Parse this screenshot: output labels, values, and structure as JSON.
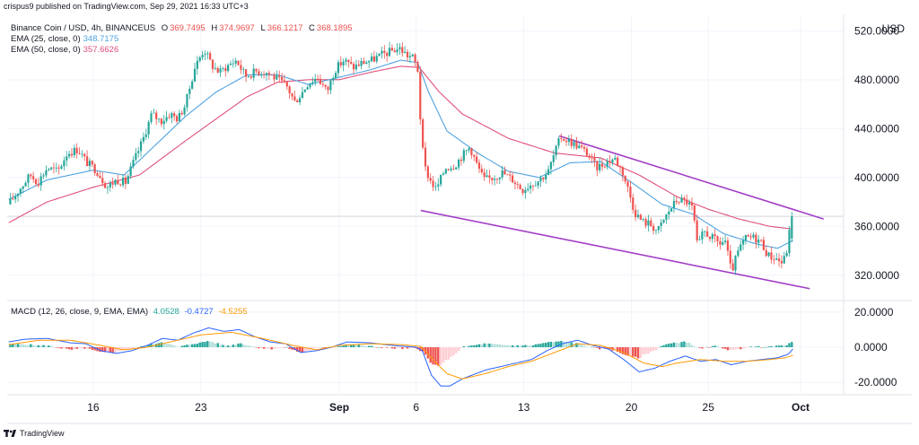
{
  "header": {
    "published": "crispus9 published on TradingView.com, Sep 29, 2021 16:33 UTC+3"
  },
  "legend": {
    "symbol": "Binance Coin / USD, 4h, BINANCEUS",
    "ohlc": [
      {
        "k": "O",
        "v": "369.7495"
      },
      {
        "k": "H",
        "v": "374.9697"
      },
      {
        "k": "L",
        "v": "366.1217"
      },
      {
        "k": "C",
        "v": "368.1895"
      }
    ],
    "ema25_label": "EMA (25, close, 0)",
    "ema25_value": "348.7175",
    "ema50_label": "EMA (50, close, 0)",
    "ema50_value": "357.6626",
    "macd_label": "MACD (12, 26, close, 9, EMA, EMA)",
    "macd_hist": "4.0528",
    "macd_line": "-0.4727",
    "macd_signal": "-4.5255"
  },
  "footer": {
    "brand": "TradingView"
  },
  "colors": {
    "up": "#26a69a",
    "down": "#ef5350",
    "ema25": "#4fa3e0",
    "ema50": "#e0507a",
    "trend": "#a23ec7",
    "macd": "#2962ff",
    "signal": "#ff9800"
  },
  "chart_data": [
    {
      "type": "candlestick",
      "currency": "USD",
      "ylim": [
        300,
        532
      ],
      "yticks": [
        "520.0000",
        "480.0000",
        "440.0000",
        "400.0000",
        "360.0000",
        "320.0000"
      ],
      "ytick_values": [
        520,
        480,
        440,
        400,
        360,
        320
      ],
      "x_labels": [
        {
          "label": "16",
          "day": 16
        },
        {
          "label": "23",
          "day": 23
        },
        {
          "label": "Sep",
          "day": 32
        },
        {
          "label": "6",
          "day": 37
        },
        {
          "label": "13",
          "day": 44
        },
        {
          "label": "20",
          "day": 51
        },
        {
          "label": "25",
          "day": 56
        },
        {
          "label": "Oct",
          "day": 62
        }
      ],
      "x_range_days": [
        10.4,
        64.8
      ],
      "price_line": 368.19,
      "close_anchors": [
        [
          10.6,
          380
        ],
        [
          11.3,
          392
        ],
        [
          11.9,
          402
        ],
        [
          12.4,
          396
        ],
        [
          13.0,
          408
        ],
        [
          13.7,
          405
        ],
        [
          14.3,
          420
        ],
        [
          15.0,
          423
        ],
        [
          15.6,
          412
        ],
        [
          16.2,
          406
        ],
        [
          16.9,
          392
        ],
        [
          17.5,
          398
        ],
        [
          18.1,
          396
        ],
        [
          18.6,
          412
        ],
        [
          19.2,
          430
        ],
        [
          19.8,
          452
        ],
        [
          20.4,
          446
        ],
        [
          21.0,
          452
        ],
        [
          21.5,
          448
        ],
        [
          22.0,
          460
        ],
        [
          22.6,
          490
        ],
        [
          23.2,
          505
        ],
        [
          23.7,
          492
        ],
        [
          24.2,
          486
        ],
        [
          24.8,
          492
        ],
        [
          25.3,
          496
        ],
        [
          25.9,
          483
        ],
        [
          26.6,
          487
        ],
        [
          27.3,
          486
        ],
        [
          28.0,
          480
        ],
        [
          28.6,
          474
        ],
        [
          29.1,
          462
        ],
        [
          29.5,
          468
        ],
        [
          30.0,
          478
        ],
        [
          30.6,
          482
        ],
        [
          31.2,
          470
        ],
        [
          31.7,
          488
        ],
        [
          32.3,
          496
        ],
        [
          32.9,
          490
        ],
        [
          33.5,
          494
        ],
        [
          34.1,
          496
        ],
        [
          34.7,
          500
        ],
        [
          35.3,
          503
        ],
        [
          35.9,
          506
        ],
        [
          36.4,
          500
        ],
        [
          36.8,
          498
        ],
        [
          37.1,
          488
        ],
        [
          37.25,
          452
        ],
        [
          37.5,
          410
        ],
        [
          37.9,
          398
        ],
        [
          38.3,
          390
        ],
        [
          38.9,
          408
        ],
        [
          39.5,
          410
        ],
        [
          40.0,
          418
        ],
        [
          40.5,
          425
        ],
        [
          40.9,
          412
        ],
        [
          41.4,
          398
        ],
        [
          42.0,
          400
        ],
        [
          42.6,
          404
        ],
        [
          43.3,
          398
        ],
        [
          43.9,
          390
        ],
        [
          44.5,
          395
        ],
        [
          45.0,
          398
        ],
        [
          45.6,
          405
        ],
        [
          46.0,
          420
        ],
        [
          46.4,
          433
        ],
        [
          46.9,
          430
        ],
        [
          47.5,
          426
        ],
        [
          48.1,
          420
        ],
        [
          48.7,
          408
        ],
        [
          49.3,
          412
        ],
        [
          49.9,
          416
        ],
        [
          50.4,
          405
        ],
        [
          50.8,
          390
        ],
        [
          51.2,
          372
        ],
        [
          51.7,
          364
        ],
        [
          52.2,
          362
        ],
        [
          52.7,
          356
        ],
        [
          53.1,
          365
        ],
        [
          53.5,
          374
        ],
        [
          54.0,
          382
        ],
        [
          54.6,
          380
        ],
        [
          55.0,
          374
        ],
        [
          55.3,
          342
        ],
        [
          55.7,
          356
        ],
        [
          56.2,
          351
        ],
        [
          56.7,
          346
        ],
        [
          57.1,
          348
        ],
        [
          57.5,
          322
        ],
        [
          57.9,
          338
        ],
        [
          58.4,
          350
        ],
        [
          58.9,
          351
        ],
        [
          59.4,
          348
        ],
        [
          59.9,
          336
        ],
        [
          60.4,
          334
        ],
        [
          60.8,
          330
        ],
        [
          61.05,
          336
        ],
        [
          61.35,
          362
        ],
        [
          61.55,
          369
        ]
      ],
      "ema25_anchors": [
        [
          10.5,
          382
        ],
        [
          13.0,
          398
        ],
        [
          16.0,
          406
        ],
        [
          18.0,
          402
        ],
        [
          20.0,
          426
        ],
        [
          22.0,
          450
        ],
        [
          24.0,
          470
        ],
        [
          26.0,
          484
        ],
        [
          28.0,
          484
        ],
        [
          30.0,
          476
        ],
        [
          32.0,
          482
        ],
        [
          34.0,
          488
        ],
        [
          36.0,
          496
        ],
        [
          37.1,
          494
        ],
        [
          37.8,
          470
        ],
        [
          39.0,
          438
        ],
        [
          41.0,
          420
        ],
        [
          43.0,
          405
        ],
        [
          45.0,
          400
        ],
        [
          47.0,
          412
        ],
        [
          49.0,
          413
        ],
        [
          51.0,
          396
        ],
        [
          53.0,
          378
        ],
        [
          55.0,
          370
        ],
        [
          57.0,
          354
        ],
        [
          59.0,
          346
        ],
        [
          60.5,
          342
        ],
        [
          61.55,
          348.7
        ]
      ],
      "ema50_anchors": [
        [
          10.5,
          363
        ],
        [
          13.0,
          380
        ],
        [
          16.0,
          392
        ],
        [
          19.0,
          402
        ],
        [
          22.0,
          430
        ],
        [
          24.0,
          448
        ],
        [
          26.0,
          466
        ],
        [
          28.0,
          478
        ],
        [
          30.0,
          480
        ],
        [
          32.0,
          480
        ],
        [
          34.0,
          486
        ],
        [
          36.0,
          491
        ],
        [
          37.2,
          490
        ],
        [
          38.5,
          470
        ],
        [
          40.0,
          452
        ],
        [
          43.0,
          432
        ],
        [
          46.0,
          420
        ],
        [
          49.0,
          416
        ],
        [
          51.5,
          402
        ],
        [
          54.0,
          384
        ],
        [
          56.0,
          374
        ],
        [
          58.0,
          366
        ],
        [
          60.0,
          360
        ],
        [
          61.55,
          357.7
        ]
      ],
      "trend_lines": [
        {
          "from": [
            46.3,
            434
          ],
          "to": [
            63.5,
            366
          ]
        },
        {
          "from": [
            37.3,
            373
          ],
          "to": [
            62.6,
            309
          ]
        }
      ]
    },
    {
      "type": "macd",
      "ylim": [
        -26,
        26
      ],
      "yticks": [
        "20.0000",
        "0.0000",
        "-20.0000"
      ],
      "ytick_values": [
        20,
        0,
        -20
      ],
      "macd_anchors": [
        [
          10.5,
          3
        ],
        [
          11.5,
          4.5
        ],
        [
          13.0,
          5
        ],
        [
          14.5,
          2.5
        ],
        [
          15.5,
          2
        ],
        [
          16.5,
          -2
        ],
        [
          17.5,
          -3.5
        ],
        [
          18.5,
          -2
        ],
        [
          19.5,
          1
        ],
        [
          20.5,
          5
        ],
        [
          21.5,
          4
        ],
        [
          22.5,
          8
        ],
        [
          23.5,
          11
        ],
        [
          24.5,
          9
        ],
        [
          25.5,
          10
        ],
        [
          26.5,
          6
        ],
        [
          27.5,
          3
        ],
        [
          28.5,
          2
        ],
        [
          29.5,
          -3
        ],
        [
          30.5,
          -2
        ],
        [
          31.5,
          0
        ],
        [
          32.5,
          3
        ],
        [
          34.0,
          2.5
        ],
        [
          35.5,
          1
        ],
        [
          37.0,
          0
        ],
        [
          37.4,
          -2
        ],
        [
          38.0,
          -16
        ],
        [
          38.6,
          -22
        ],
        [
          39.2,
          -22
        ],
        [
          40.0,
          -18
        ],
        [
          41.5,
          -13
        ],
        [
          43.0,
          -10
        ],
        [
          44.5,
          -7
        ],
        [
          45.5,
          -2
        ],
        [
          46.5,
          2
        ],
        [
          47.5,
          4
        ],
        [
          48.5,
          1
        ],
        [
          49.5,
          -1
        ],
        [
          50.5,
          -7
        ],
        [
          51.5,
          -14
        ],
        [
          52.5,
          -12
        ],
        [
          53.5,
          -8
        ],
        [
          54.5,
          -5
        ],
        [
          55.5,
          -8
        ],
        [
          56.5,
          -7
        ],
        [
          57.5,
          -10
        ],
        [
          58.5,
          -8
        ],
        [
          59.5,
          -7
        ],
        [
          60.5,
          -6
        ],
        [
          61.2,
          -4
        ],
        [
          61.55,
          -0.47
        ]
      ],
      "signal_anchors": [
        [
          10.5,
          1.5
        ],
        [
          12.5,
          4
        ],
        [
          14.5,
          4
        ],
        [
          16.5,
          1
        ],
        [
          18.0,
          -1.5
        ],
        [
          19.5,
          0
        ],
        [
          21.0,
          3
        ],
        [
          23.0,
          7
        ],
        [
          25.0,
          8.5
        ],
        [
          27.0,
          5
        ],
        [
          29.0,
          1
        ],
        [
          30.5,
          -1.5
        ],
        [
          32.0,
          1
        ],
        [
          34.0,
          2
        ],
        [
          36.0,
          1.5
        ],
        [
          37.3,
          0.5
        ],
        [
          38.2,
          -8
        ],
        [
          39.0,
          -15
        ],
        [
          40.0,
          -18
        ],
        [
          41.5,
          -15
        ],
        [
          43.0,
          -11
        ],
        [
          44.5,
          -8
        ],
        [
          46.0,
          -3
        ],
        [
          47.5,
          2
        ],
        [
          49.0,
          1
        ],
        [
          50.5,
          -3
        ],
        [
          51.8,
          -9
        ],
        [
          53.0,
          -11
        ],
        [
          54.0,
          -9
        ],
        [
          55.5,
          -7
        ],
        [
          57.0,
          -8
        ],
        [
          58.5,
          -8
        ],
        [
          60.0,
          -7
        ],
        [
          61.0,
          -6
        ],
        [
          61.55,
          -4.53
        ]
      ],
      "histogram": "macd minus signal"
    }
  ]
}
